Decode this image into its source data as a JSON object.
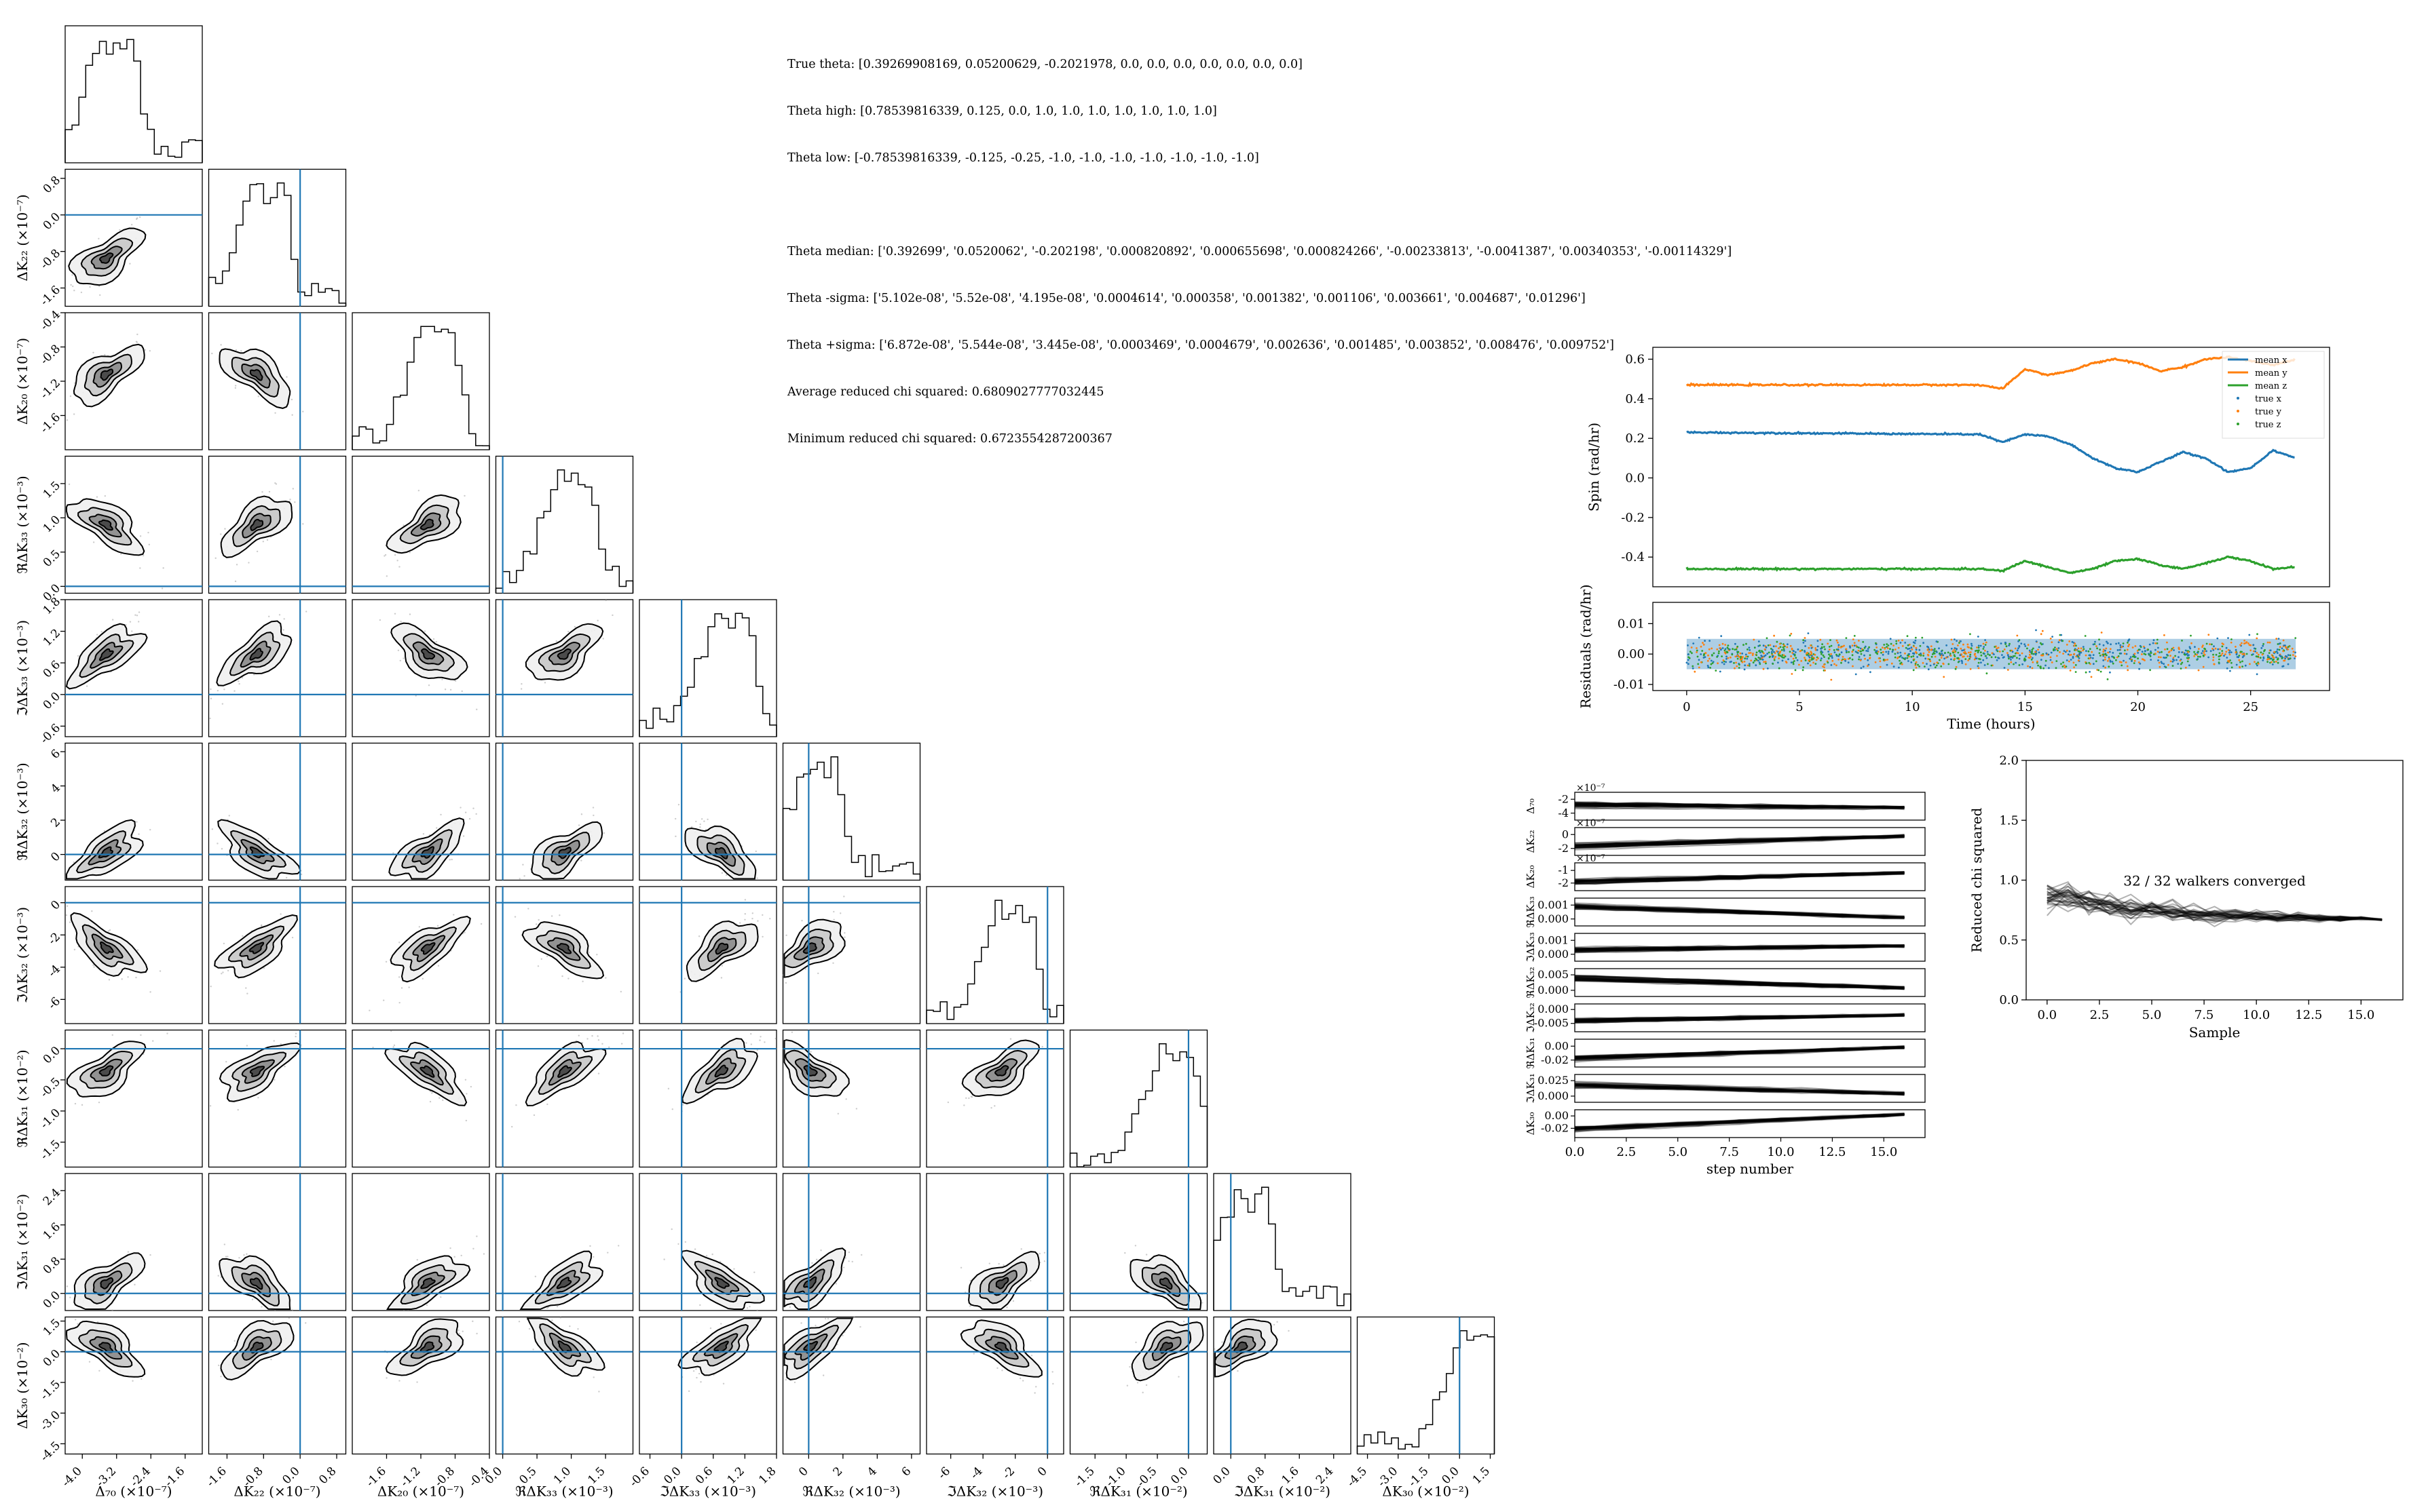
{
  "info": {
    "true_theta": "True theta: [0.39269908169, 0.05200629, -0.2021978, 0.0, 0.0, 0.0, 0.0, 0.0, 0.0, 0.0]",
    "theta_high": "Theta high: [0.78539816339, 0.125, 0.0, 1.0, 1.0, 1.0, 1.0, 1.0, 1.0, 1.0]",
    "theta_low": "Theta low: [-0.78539816339, -0.125, -0.25, -1.0, -1.0, -1.0, -1.0, -1.0, -1.0, -1.0]",
    "theta_median": "Theta median: ['0.392699', '0.0520062', '-0.202198', '0.000820892', '0.000655698', '0.000824266', '-0.00233813', '-0.0041387', '0.00340353', '-0.00114329']",
    "theta_minus_sigma": "Theta -sigma: ['5.102e-08', '5.52e-08', '4.195e-08', '0.0004614', '0.000358', '0.001382', '0.001106', '0.003661', '0.004687', '0.01296']",
    "theta_plus_sigma": "Theta +sigma: ['6.872e-08', '5.544e-08', '3.445e-08', '0.0003469', '0.0004679', '0.002636', '0.001485', '0.003852', '0.008476', '0.009752']",
    "avg_chi": "Average reduced chi squared: 0.6809027777032445",
    "min_chi": "Minimum reduced chi squared: 0.6723554287200367"
  },
  "colors": {
    "truth": "#1f77b4",
    "x": "#1f77b4",
    "y": "#ff7f0e",
    "z": "#2ca02c"
  },
  "chart_data": [
    {
      "type": "scatter",
      "subtype": "corner",
      "parameters": [
        {
          "label": "Δ₇₀ (×10⁻⁷)",
          "range": [
            -4.4,
            -1.2
          ],
          "ticks": [
            "-4.0",
            "-3.2",
            "-2.4",
            "-1.6"
          ],
          "tick_values": [
            -4.0,
            -3.2,
            -2.4,
            -1.6
          ],
          "truth": null
        },
        {
          "label": "ΔK₂₂ (×10⁻⁷)",
          "range": [
            -2.0,
            1.0
          ],
          "ticks": [
            "-1.6",
            "-0.8",
            "0.0",
            "0.8"
          ],
          "tick_values": [
            -1.6,
            -0.8,
            0.0,
            0.8
          ],
          "truth": 0.0
        },
        {
          "label": "ΔK₂₀ (×10⁻⁷)",
          "range": [
            -2.0,
            -0.4
          ],
          "ticks": [
            "-1.6",
            "-1.2",
            "-0.8",
            "-0.4"
          ],
          "tick_values": [
            -1.6,
            -1.2,
            -0.8,
            -0.4
          ],
          "truth": null
        },
        {
          "label": "ℜΔK₃₃ (×10⁻³)",
          "range": [
            -0.1,
            1.9
          ],
          "ticks": [
            "0.0",
            "0.5",
            "1.0",
            "1.5"
          ],
          "tick_values": [
            0.0,
            0.5,
            1.0,
            1.5
          ],
          "truth": 0.0
        },
        {
          "label": "ℑΔK₃₃ (×10⁻³)",
          "range": [
            -0.8,
            1.8
          ],
          "ticks": [
            "-0.6",
            "0.0",
            "0.6",
            "1.2",
            "1.8"
          ],
          "tick_values": [
            -0.6,
            0.0,
            0.6,
            1.2,
            1.8
          ],
          "truth": 0.0
        },
        {
          "label": "ℜΔK₃₂ (×10⁻³)",
          "range": [
            -1.5,
            6.5
          ],
          "ticks": [
            "0",
            "2",
            "4",
            "6"
          ],
          "tick_values": [
            0,
            2,
            4,
            6
          ],
          "truth": 0.0
        },
        {
          "label": "ℑΔK₃₂ (×10⁻³)",
          "range": [
            -7.5,
            1.0
          ],
          "ticks": [
            "-6",
            "-4",
            "-2",
            "0"
          ],
          "tick_values": [
            -6,
            -4,
            -2,
            0
          ],
          "truth": 0.0
        },
        {
          "label": "ℜΔK₃₁ (×10⁻²)",
          "range": [
            -1.9,
            0.3
          ],
          "ticks": [
            "-1.5",
            "-1.0",
            "-0.5",
            "0.0"
          ],
          "tick_values": [
            -1.5,
            -1.0,
            -0.5,
            0.0
          ],
          "truth": 0.0
        },
        {
          "label": "ℑΔK₃₁ (×10⁻²)",
          "range": [
            -0.4,
            2.8
          ],
          "ticks": [
            "0.0",
            "0.8",
            "1.6",
            "2.4"
          ],
          "tick_values": [
            0.0,
            0.8,
            1.6,
            2.4
          ],
          "truth": 0.0
        },
        {
          "label": "ΔK₃₀ (×10⁻²)",
          "range": [
            -5.0,
            1.7
          ],
          "ticks": [
            "-4.5",
            "-3.0",
            "-1.5",
            "0.0",
            "1.5"
          ],
          "tick_values": [
            -4.5,
            -3.0,
            -1.5,
            0.0,
            1.5
          ],
          "truth": 0.0
        }
      ]
    },
    {
      "type": "line",
      "title": "",
      "xlabel": "",
      "ylabel": "Spin (rad/hr)",
      "xlim": [
        -1.5,
        28.5
      ],
      "ylim": [
        -0.55,
        0.66
      ],
      "yticks": [
        -0.4,
        -0.2,
        0.0,
        0.2,
        0.4,
        0.6
      ],
      "legend": [
        "mean x",
        "mean y",
        "mean z",
        "true x",
        "true y",
        "true z"
      ],
      "legend_position": "top-right",
      "series": [
        {
          "name": "mean x",
          "baseline": 0.23,
          "start_hours": 13,
          "amplitude": 0.06,
          "x": [
            0,
            13,
            14,
            15,
            16,
            17,
            18,
            19,
            20,
            21,
            22,
            23,
            24,
            25,
            26,
            27
          ],
          "y": [
            0.23,
            0.22,
            0.18,
            0.22,
            0.21,
            0.17,
            0.1,
            0.05,
            0.03,
            0.08,
            0.13,
            0.1,
            0.03,
            0.05,
            0.14,
            0.1
          ]
        },
        {
          "name": "mean y",
          "x": [
            0,
            13,
            14,
            15,
            16,
            17,
            18,
            19,
            20,
            21,
            22,
            23,
            24,
            25,
            26,
            27
          ],
          "y": [
            0.47,
            0.47,
            0.45,
            0.55,
            0.52,
            0.54,
            0.58,
            0.6,
            0.58,
            0.54,
            0.56,
            0.6,
            0.61,
            0.59,
            0.57,
            0.6
          ]
        },
        {
          "name": "mean z",
          "x": [
            0,
            13,
            14,
            15,
            16,
            17,
            18,
            19,
            20,
            21,
            22,
            23,
            24,
            25,
            26,
            27
          ],
          "y": [
            -0.46,
            -0.46,
            -0.47,
            -0.42,
            -0.45,
            -0.48,
            -0.46,
            -0.42,
            -0.41,
            -0.44,
            -0.46,
            -0.43,
            -0.4,
            -0.42,
            -0.46,
            -0.45
          ]
        }
      ]
    },
    {
      "type": "scatter",
      "xlabel": "Time (hours)",
      "ylabel": "Residuals (rad/hr)",
      "xlim": [
        -1.5,
        28.5
      ],
      "ylim": [
        -0.012,
        0.017
      ],
      "xticks": [
        0,
        5,
        10,
        15,
        20,
        25
      ],
      "yticks": [
        -0.01,
        0.0,
        0.01
      ],
      "band": [
        -0.005,
        0.005
      ]
    },
    {
      "type": "line",
      "subtype": "walker-traces",
      "xlabel": "step number",
      "xlim": [
        0,
        17
      ],
      "xticks": [
        "0.0",
        "2.5",
        "5.0",
        "7.5",
        "10.0",
        "12.5",
        "15.0"
      ],
      "tick_values": [
        0,
        2.5,
        5,
        7.5,
        10,
        12.5,
        15
      ],
      "panels": [
        {
          "ticks": [
            "-2",
            "-4"
          ],
          "tick_values": [
            -2,
            -4
          ],
          "range": [
            -5,
            -1
          ],
          "label": "Δ₇₀",
          "offset": "×10⁻⁷",
          "start": -2.8,
          "end": -3.2
        },
        {
          "ticks": [
            "0",
            "-2"
          ],
          "tick_values": [
            0,
            -2
          ],
          "range": [
            -3,
            1
          ],
          "label": "ΔK₂₂",
          "offset": "×10⁻⁷",
          "start": -1.6,
          "end": -0.2
        },
        {
          "ticks": [
            "-1",
            "-2"
          ],
          "tick_values": [
            -1,
            -2
          ],
          "range": [
            -2.6,
            -0.4
          ],
          "label": "ΔK₂₀",
          "offset": "×10⁻⁷",
          "start": -1.9,
          "end": -1.2
        },
        {
          "ticks": [
            "0.001",
            "0.000"
          ],
          "tick_values": [
            0.001,
            0.0
          ],
          "range": [
            -0.0005,
            0.0015
          ],
          "label": "ℜΔK₃₃",
          "start": 0.0009,
          "end": 0.0001
        },
        {
          "ticks": [
            "0.001",
            "0.000"
          ],
          "tick_values": [
            0.001,
            0.0
          ],
          "range": [
            -0.0005,
            0.0015
          ],
          "label": "ℑΔK₃₃",
          "start": 0.0003,
          "end": 0.0006
        },
        {
          "ticks": [
            "0.005",
            "0.000"
          ],
          "tick_values": [
            0.005,
            0.0
          ],
          "range": [
            -0.002,
            0.007
          ],
          "label": "ℜΔK₃₂",
          "start": 0.004,
          "end": 0.0008
        },
        {
          "ticks": [
            "0.000",
            "-0.005"
          ],
          "tick_values": [
            0.0,
            -0.005
          ],
          "range": [
            -0.008,
            0.002
          ],
          "label": "ℑΔK₃₂",
          "start": -0.004,
          "end": -0.002
        },
        {
          "ticks": [
            "0.00",
            "-0.02"
          ],
          "tick_values": [
            0.0,
            -0.02
          ],
          "range": [
            -0.03,
            0.01
          ],
          "label": "ℜΔK₃₁",
          "start": -0.018,
          "end": -0.002
        },
        {
          "ticks": [
            "0.025",
            "0.000"
          ],
          "tick_values": [
            0.025,
            0.0
          ],
          "range": [
            -0.01,
            0.035
          ],
          "label": "ℑΔK₃₁",
          "start": 0.018,
          "end": 0.004
        },
        {
          "ticks": [
            "0.00",
            "-0.02"
          ],
          "tick_values": [
            0.0,
            -0.02
          ],
          "range": [
            -0.035,
            0.01
          ],
          "label": "ΔK₃₀",
          "start": -0.022,
          "end": 0.002
        }
      ]
    },
    {
      "type": "line",
      "xlabel": "Sample",
      "ylabel": "Reduced chi squared",
      "xlim": [
        -1,
        17
      ],
      "ylim": [
        0.0,
        2.0
      ],
      "xticks": [
        "0.0",
        "2.5",
        "5.0",
        "7.5",
        "10.0",
        "12.5",
        "15.0"
      ],
      "tick_values": [
        0,
        2.5,
        5,
        7.5,
        10,
        12.5,
        15
      ],
      "yticks": [
        "0.0",
        "0.5",
        "1.0",
        "1.5",
        "2.0"
      ],
      "ytick_values": [
        0,
        0.5,
        1.0,
        1.5,
        2.0
      ],
      "annotation": "32 / 32 walkers converged",
      "x": [
        0,
        1,
        2,
        3,
        4,
        5,
        6,
        7,
        8,
        9,
        10,
        11,
        12,
        13,
        14,
        15,
        16
      ],
      "y": [
        0.88,
        0.85,
        0.82,
        0.79,
        0.77,
        0.75,
        0.74,
        0.72,
        0.71,
        0.7,
        0.7,
        0.69,
        0.69,
        0.68,
        0.68,
        0.68,
        0.67
      ]
    }
  ]
}
